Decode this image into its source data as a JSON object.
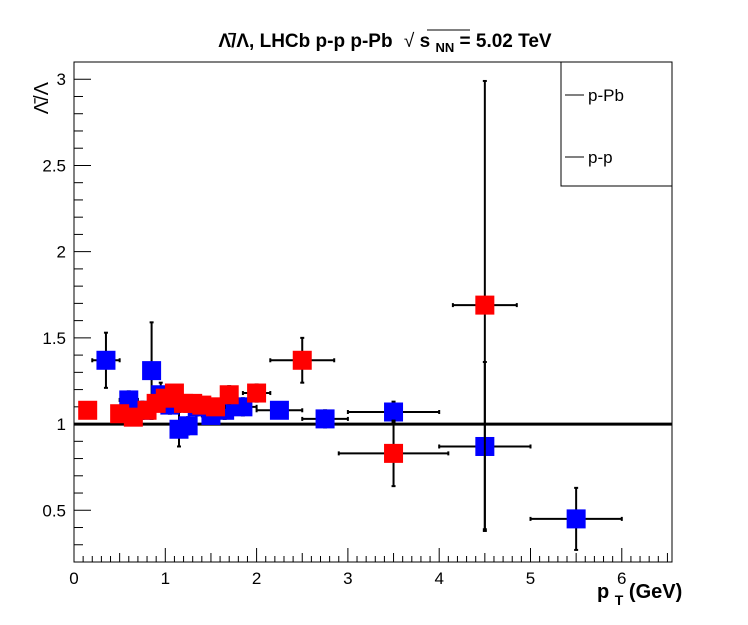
{
  "chart_data": {
    "type": "scatter",
    "title": {
      "prefix": "Λ̄/Λ, LHCb p-p p-Pb",
      "sqrt_symbol": "√",
      "s": "s",
      "s_sub": "NN",
      "suffix": "= 5.02 TeV"
    },
    "ylabel": "Λ̄/Λ",
    "xlabel": {
      "main": "p",
      "sub": "T",
      "unit": "(GeV)"
    },
    "xlim": [
      0,
      6.55
    ],
    "ylim": [
      0.2,
      3.1
    ],
    "x_ticks": [
      "0",
      "1",
      "2",
      "3",
      "4",
      "5",
      "6"
    ],
    "y_ticks": [
      "0.5",
      "1",
      "1.5",
      "2",
      "2.5",
      "3"
    ],
    "reference_line": 1.0,
    "colors": {
      "p-Pb": "#0000ff",
      "p-p": "#ff0000",
      "line": "#000000"
    },
    "legend": {
      "placement": "top-right",
      "entries": [
        "p-Pb",
        "p-p"
      ]
    },
    "series": [
      {
        "name": "p-Pb",
        "color": "#0000ff",
        "points": [
          {
            "x": 0.35,
            "y": 1.37,
            "xerr": 0.15,
            "yerr": 0.16
          },
          {
            "x": 0.6,
            "y": 1.14,
            "xerr": 0.1,
            "yerr": 0.05
          },
          {
            "x": 0.75,
            "y": 1.08,
            "xerr": 0.05,
            "yerr": 0.05
          },
          {
            "x": 0.85,
            "y": 1.31,
            "xerr": 0.05,
            "yerr": 0.28
          },
          {
            "x": 0.95,
            "y": 1.17,
            "xerr": 0.05,
            "yerr": 0.07
          },
          {
            "x": 1.05,
            "y": 1.11,
            "xerr": 0.05,
            "yerr": 0.05
          },
          {
            "x": 1.15,
            "y": 0.97,
            "xerr": 0.05,
            "yerr": 0.1
          },
          {
            "x": 1.25,
            "y": 0.99,
            "xerr": 0.05,
            "yerr": 0.05
          },
          {
            "x": 1.35,
            "y": 1.1,
            "xerr": 0.05,
            "yerr": 0.05
          },
          {
            "x": 1.5,
            "y": 1.05,
            "xerr": 0.1,
            "yerr": 0.05
          },
          {
            "x": 1.65,
            "y": 1.08,
            "xerr": 0.05,
            "yerr": 0.05
          },
          {
            "x": 1.85,
            "y": 1.1,
            "xerr": 0.15,
            "yerr": 0.05
          },
          {
            "x": 2.25,
            "y": 1.08,
            "xerr": 0.25,
            "yerr": 0.04
          },
          {
            "x": 2.75,
            "y": 1.03,
            "xerr": 0.25,
            "yerr": 0.05
          },
          {
            "x": 3.5,
            "y": 1.07,
            "xerr": 0.5,
            "yerr": 0.06
          },
          {
            "x": 4.5,
            "y": 0.87,
            "xerr": 0.5,
            "yerr": 0.49
          },
          {
            "x": 5.5,
            "y": 0.45,
            "xerr": 0.5,
            "yerr": 0.18
          }
        ]
      },
      {
        "name": "p-p",
        "color": "#ff0000",
        "points": [
          {
            "x": 0.15,
            "y": 1.08,
            "xerr": 0.05,
            "yerr": 0.03
          },
          {
            "x": 0.5,
            "y": 1.06,
            "xerr": 0.05,
            "yerr": 0.03
          },
          {
            "x": 0.65,
            "y": 1.04,
            "xerr": 0.05,
            "yerr": 0.03
          },
          {
            "x": 0.8,
            "y": 1.08,
            "xerr": 0.05,
            "yerr": 0.03
          },
          {
            "x": 0.9,
            "y": 1.12,
            "xerr": 0.05,
            "yerr": 0.04
          },
          {
            "x": 1.0,
            "y": 1.15,
            "xerr": 0.05,
            "yerr": 0.04
          },
          {
            "x": 1.1,
            "y": 1.18,
            "xerr": 0.05,
            "yerr": 0.04
          },
          {
            "x": 1.2,
            "y": 1.12,
            "xerr": 0.05,
            "yerr": 0.04
          },
          {
            "x": 1.3,
            "y": 1.12,
            "xerr": 0.05,
            "yerr": 0.04
          },
          {
            "x": 1.4,
            "y": 1.11,
            "xerr": 0.05,
            "yerr": 0.04
          },
          {
            "x": 1.55,
            "y": 1.1,
            "xerr": 0.1,
            "yerr": 0.04
          },
          {
            "x": 1.7,
            "y": 1.17,
            "xerr": 0.05,
            "yerr": 0.05
          },
          {
            "x": 2.0,
            "y": 1.18,
            "xerr": 0.15,
            "yerr": 0.05
          },
          {
            "x": 2.5,
            "y": 1.37,
            "xerr": 0.35,
            "yerr": 0.13
          },
          {
            "x": 3.5,
            "y": 0.83,
            "xerr": 0.6,
            "yerr": 0.19
          },
          {
            "x": 4.5,
            "y": 1.69,
            "xerr": 0.35,
            "yerr": 1.3
          }
        ]
      }
    ]
  }
}
